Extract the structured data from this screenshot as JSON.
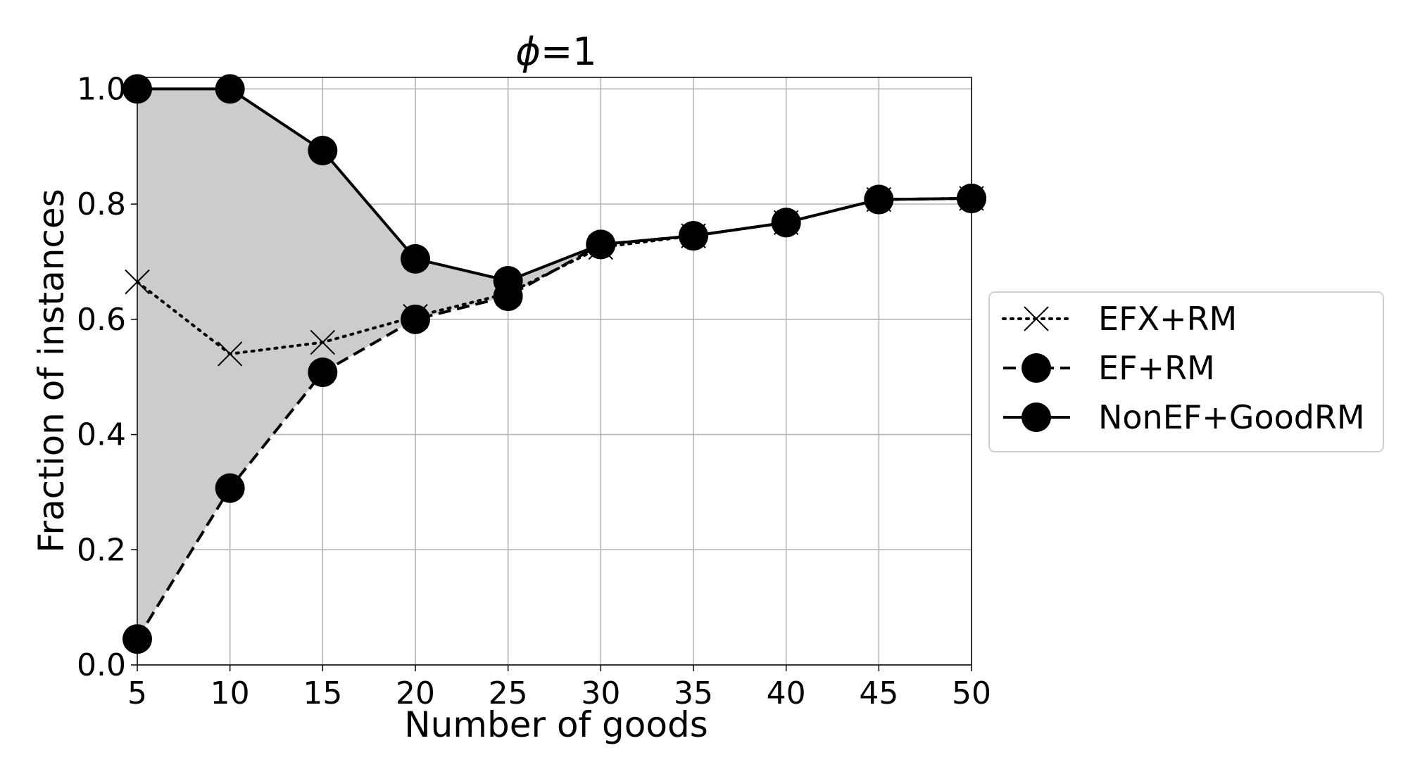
{
  "chart_data": {
    "type": "line",
    "title_symbol": "ϕ",
    "title_value": "=1",
    "xlabel": "Number of goods",
    "ylabel": "Fraction of instances",
    "x": [
      5,
      10,
      15,
      20,
      25,
      30,
      35,
      40,
      45,
      50
    ],
    "xlim": [
      5,
      50
    ],
    "ylim": [
      0.0,
      1.02
    ],
    "xticks": [
      "5",
      "10",
      "15",
      "20",
      "25",
      "30",
      "35",
      "40",
      "45",
      "50"
    ],
    "yticks": [
      "0.0",
      "0.2",
      "0.4",
      "0.6",
      "0.8",
      "1.0"
    ],
    "grid": true,
    "legend_position": "right",
    "shaded_region": {
      "between": [
        "EF+RM",
        "NonEF+GoodRM"
      ],
      "color": "#cccccc"
    },
    "series": [
      {
        "name": "EFX+RM",
        "line_style": "dotted",
        "marker": "x",
        "values": [
          0.665,
          0.54,
          0.56,
          0.605,
          0.645,
          0.725,
          0.745,
          0.768,
          0.808,
          0.81
        ]
      },
      {
        "name": "EF+RM",
        "line_style": "dashed",
        "marker": "circle",
        "values": [
          0.045,
          0.307,
          0.508,
          0.6,
          0.64,
          0.73,
          0.745,
          0.768,
          0.808,
          0.81
        ]
      },
      {
        "name": "NonEF+GoodRM",
        "line_style": "solid",
        "marker": "circle",
        "values": [
          1.0,
          1.0,
          0.893,
          0.705,
          0.667,
          0.73,
          0.745,
          0.768,
          0.808,
          0.81
        ]
      }
    ]
  }
}
